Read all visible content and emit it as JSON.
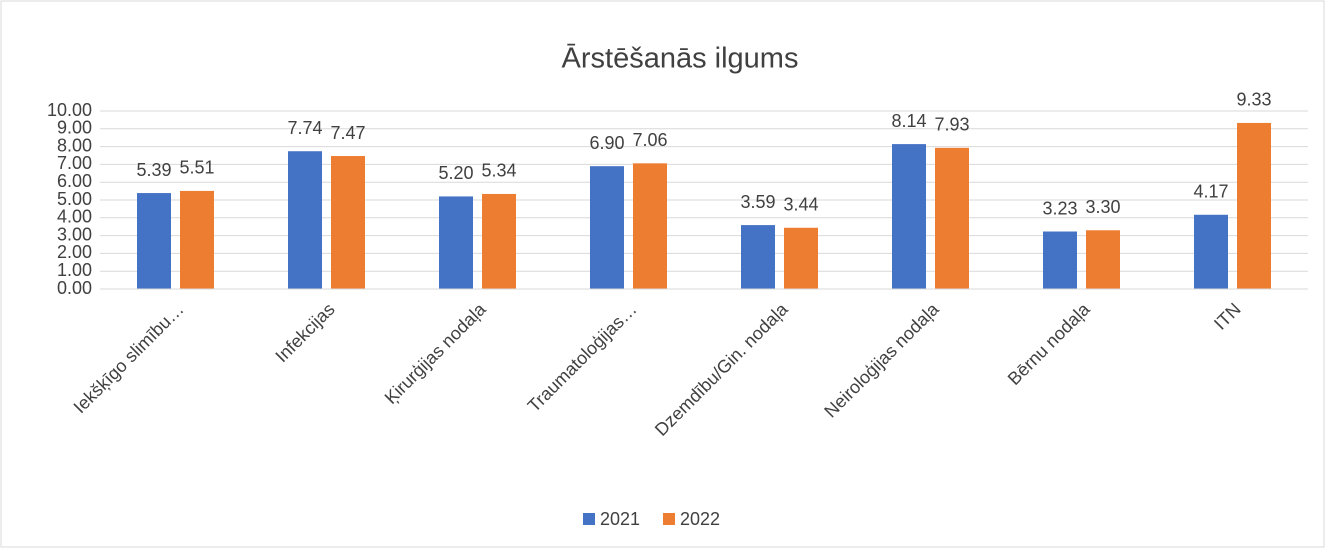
{
  "chart_data": {
    "type": "bar",
    "title": "Ārstēšanās ilgums",
    "categories": [
      "Iekšķīgo slimību…",
      "Infekcijas",
      "Ķirurģijas nodaļa",
      "Traumatoloģijas…",
      "Dzemdību/Gin. nodaļa",
      "Neiroloģijas nodaļa",
      "Bērnu nodaļa",
      "ITN"
    ],
    "series": [
      {
        "name": "2021",
        "color": "#4472c4",
        "values": [
          5.39,
          7.74,
          5.2,
          6.9,
          3.59,
          8.14,
          3.23,
          4.17
        ],
        "value_labels": [
          "5.39",
          "7.74",
          "5.20",
          "6.90",
          "3.59",
          "8.14",
          "3.23",
          "4.17"
        ]
      },
      {
        "name": "2022",
        "color": "#ed7d31",
        "values": [
          5.51,
          7.47,
          5.34,
          7.06,
          3.44,
          7.93,
          3.3,
          9.33
        ],
        "value_labels": [
          "5.51",
          "7.47",
          "5.34",
          "7.06",
          "3.44",
          "7.93",
          "3.30",
          "9.33"
        ]
      }
    ],
    "ylim": [
      0,
      10
    ],
    "yticks": [
      {
        "value": 0,
        "label": "0.00"
      },
      {
        "value": 1,
        "label": "1.00"
      },
      {
        "value": 2,
        "label": "2.00"
      },
      {
        "value": 3,
        "label": "3.00"
      },
      {
        "value": 4,
        "label": "4.00"
      },
      {
        "value": 5,
        "label": "5.00"
      },
      {
        "value": 6,
        "label": "6.00"
      },
      {
        "value": 7,
        "label": "7.00"
      },
      {
        "value": 8,
        "label": "8.00"
      },
      {
        "value": 9,
        "label": "9.00"
      },
      {
        "value": 10,
        "label": "10.00"
      }
    ],
    "grid": true,
    "legend": "bottom"
  }
}
